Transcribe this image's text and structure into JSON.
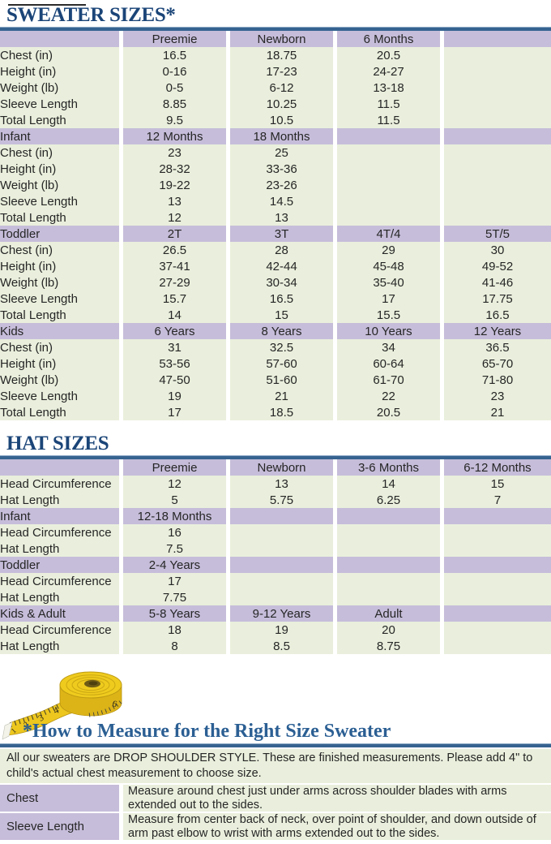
{
  "colors": {
    "header_purple": "#C6BDDA",
    "cell_green": "#E9EFDC",
    "title_blue": "#1B4578",
    "heading_blue": "#2B5F93",
    "rule_blue": "#366390",
    "tape_yellow": "#EDC71E"
  },
  "sweater": {
    "title": "SWEATER SIZES*",
    "sections": [
      {
        "header": [
          "",
          "Preemie",
          "Newborn",
          "6 Months",
          ""
        ],
        "rows": [
          [
            "Chest (in)",
            "16.5",
            "18.75",
            "20.5",
            ""
          ],
          [
            "Height (in)",
            "0-16",
            "17-23",
            "24-27",
            ""
          ],
          [
            "Weight (lb)",
            "0-5",
            "6-12",
            "13-18",
            ""
          ],
          [
            "Sleeve Length",
            "8.85",
            "10.25",
            "11.5",
            ""
          ],
          [
            "Total Length",
            "9.5",
            "10.5",
            "11.5",
            ""
          ]
        ]
      },
      {
        "header": [
          "Infant",
          "12 Months",
          "18 Months",
          "",
          ""
        ],
        "rows": [
          [
            "Chest (in)",
            "23",
            "25",
            "",
            ""
          ],
          [
            "Height (in)",
            "28-32",
            "33-36",
            "",
            ""
          ],
          [
            "Weight (lb)",
            "19-22",
            "23-26",
            "",
            ""
          ],
          [
            "Sleeve Length",
            "13",
            "14.5",
            "",
            ""
          ],
          [
            "Total Length",
            "12",
            "13",
            "",
            ""
          ]
        ]
      },
      {
        "header": [
          "Toddler",
          "2T",
          "3T",
          "4T/4",
          "5T/5"
        ],
        "rows": [
          [
            "Chest (in)",
            "26.5",
            "28",
            "29",
            "30"
          ],
          [
            "Height (in)",
            "37-41",
            "42-44",
            "45-48",
            "49-52"
          ],
          [
            "Weight (lb)",
            "27-29",
            "30-34",
            "35-40",
            "41-46"
          ],
          [
            "Sleeve Length",
            "15.7",
            "16.5",
            "17",
            "17.75"
          ],
          [
            "Total Length",
            "14",
            "15",
            "15.5",
            "16.5"
          ]
        ]
      },
      {
        "header": [
          "Kids",
          "6 Years",
          "8 Years",
          "10 Years",
          "12 Years"
        ],
        "rows": [
          [
            "Chest (in)",
            "31",
            "32.5",
            "34",
            "36.5"
          ],
          [
            "Height (in)",
            "53-56",
            "57-60",
            "60-64",
            "65-70"
          ],
          [
            "Weight (lb)",
            "47-50",
            "51-60",
            "61-70",
            "71-80"
          ],
          [
            "Sleeve Length",
            "19",
            "21",
            "22",
            "23"
          ],
          [
            "Total Length",
            "17",
            "18.5",
            "20.5",
            "21"
          ]
        ]
      }
    ]
  },
  "hat": {
    "title": "HAT SIZES",
    "sections": [
      {
        "header": [
          "",
          "Preemie",
          "Newborn",
          "3-6 Months",
          "6-12 Months"
        ],
        "rows": [
          [
            "Head Circumference",
            "12",
            "13",
            "14",
            "15"
          ],
          [
            "Hat Length",
            "5",
            "5.75",
            "6.25",
            "7"
          ]
        ]
      },
      {
        "header": [
          "Infant",
          "12-18 Months",
          "",
          "",
          ""
        ],
        "rows": [
          [
            "Head Circumference",
            "16",
            "",
            "",
            ""
          ],
          [
            "Hat Length",
            "7.5",
            "",
            "",
            ""
          ]
        ]
      },
      {
        "header": [
          "Toddler",
          "2-4 Years",
          "",
          "",
          ""
        ],
        "rows": [
          [
            "Head Circumference",
            "17",
            "",
            "",
            ""
          ],
          [
            "Hat Length",
            "7.75",
            "",
            "",
            ""
          ]
        ]
      },
      {
        "header": [
          "Kids & Adult",
          "5-8 Years",
          "9-12 Years",
          "Adult",
          ""
        ],
        "rows": [
          [
            "Head Circumference",
            "18",
            "19",
            "20",
            ""
          ],
          [
            "Hat Length",
            "8",
            "8.5",
            "8.75",
            ""
          ]
        ]
      }
    ]
  },
  "measure": {
    "heading": "*How to Measure for the Right Size Sweater",
    "intro": "All our sweaters are DROP SHOULDER STYLE.  These are finished measurements.  Please add 4\" to child's actual chest measurement to choose size.",
    "rows": [
      {
        "label": "Chest",
        "text": "Measure around chest just under arms across shoulder blades with arms extended out to the sides."
      },
      {
        "label": "Sleeve Length",
        "text": "Measure from center back of neck, over point of shoulder, and down outside of arm past elbow to wrist with arms extended out to the sides."
      }
    ],
    "tape_numbers": [
      "1",
      "2",
      "3",
      "4",
      "5",
      "6"
    ]
  }
}
